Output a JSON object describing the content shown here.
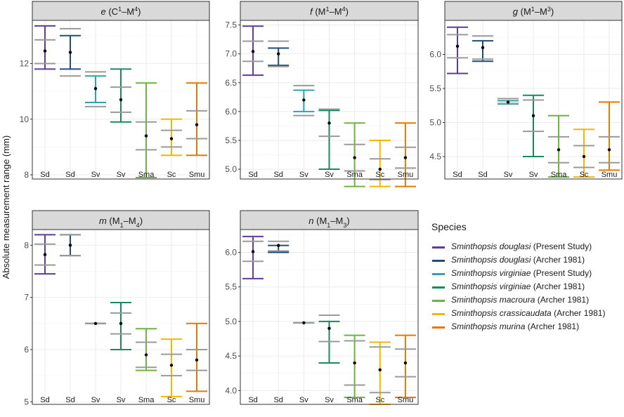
{
  "figure": {
    "y_axis_label": "Absolute measurement range (mm)",
    "legend_title": "Species"
  },
  "species": [
    {
      "code": "Sd",
      "genus": "Sminthopsis",
      "epithet": "douglasi",
      "source": "(Present Study)",
      "color": "#5E3C99"
    },
    {
      "code": "Sd",
      "genus": "Sminthopsis",
      "epithet": "douglasi",
      "source": "(Archer 1981)",
      "color": "#1F4E79"
    },
    {
      "code": "Sv",
      "genus": "Sminthopsis",
      "epithet": "virginiae",
      "source": "(Present Study)",
      "color": "#2FA4A8"
    },
    {
      "code": "Sv",
      "genus": "Sminthopsis",
      "epithet": "virginiae",
      "source": "(Archer 1981)",
      "color": "#178A5F"
    },
    {
      "code": "Sma",
      "genus": "Sminthopsis",
      "epithet": "macroura",
      "source": "(Archer 1981)",
      "color": "#6DB33F"
    },
    {
      "code": "Sc",
      "genus": "Sminthopsis",
      "epithet": "crassicaudata",
      "source": "(Archer 1981)",
      "color": "#F2B705"
    },
    {
      "code": "Smu",
      "genus": "Sminthopsis",
      "epithet": "murina",
      "source": "(Archer 1981)",
      "color": "#E07B00"
    }
  ],
  "chart_data": [
    {
      "type": "errorbar",
      "title_var": "e",
      "title_rest": " (C",
      "sup1": "1",
      "mid": "–M",
      "sup2": "4",
      "close": ")",
      "categories": [
        "Sd",
        "Sd",
        "Sv",
        "Sv",
        "Sma",
        "Sc",
        "Smu"
      ],
      "ylim": [
        7.85,
        13.55
      ],
      "yticks": [
        8,
        10,
        12
      ],
      "min": [
        11.8,
        11.8,
        10.6,
        9.9,
        7.9,
        8.7,
        8.7
      ],
      "max": [
        13.35,
        13.0,
        11.55,
        11.8,
        11.3,
        10.0,
        11.3
      ],
      "mean": [
        12.45,
        12.4,
        11.1,
        10.7,
        9.4,
        9.3,
        9.8
      ],
      "sd_low": [
        12.0,
        11.55,
        10.45,
        10.25,
        8.9,
        9.0,
        9.3
      ],
      "sd_high": [
        12.85,
        13.25,
        11.7,
        11.15,
        9.9,
        9.6,
        10.3
      ]
    },
    {
      "type": "errorbar",
      "title_var": "f",
      "title_rest": " (M",
      "sup1": "1",
      "mid": "–M",
      "sup2": "4",
      "close": ")",
      "categories": [
        "Sd",
        "Sd",
        "Sv",
        "Sv",
        "Sma",
        "Sc",
        "Smu"
      ],
      "ylim": [
        4.83,
        7.58
      ],
      "yticks": [
        5.0,
        5.5,
        6.0,
        6.5,
        7.0,
        7.5
      ],
      "tick_decimals": 1,
      "min": [
        6.63,
        6.8,
        6.0,
        5.0,
        4.7,
        4.7,
        4.7
      ],
      "max": [
        7.48,
        7.1,
        6.37,
        6.02,
        5.8,
        5.5,
        5.8
      ],
      "mean": [
        7.04,
        7.0,
        6.2,
        5.8,
        5.2,
        5.0,
        5.2
      ],
      "sd_low": [
        6.87,
        6.78,
        5.93,
        5.57,
        4.97,
        4.82,
        5.02
      ],
      "sd_high": [
        7.22,
        7.22,
        6.45,
        6.04,
        5.43,
        5.18,
        5.38
      ]
    },
    {
      "type": "errorbar",
      "title_var": "g",
      "title_rest": " (M",
      "sup1": "1",
      "mid": "–M",
      "sup2": "3",
      "close": ")",
      "categories": [
        "Sd",
        "Sd",
        "Sv",
        "Sv",
        "Sma",
        "Sc",
        "Smu"
      ],
      "ylim": [
        4.17,
        6.5
      ],
      "yticks": [
        4.5,
        5.0,
        5.5,
        6.0
      ],
      "tick_decimals": 1,
      "min": [
        5.72,
        5.9,
        5.27,
        4.5,
        4.2,
        4.2,
        4.3
      ],
      "max": [
        6.4,
        6.2,
        5.32,
        5.4,
        5.1,
        4.9,
        5.3
      ],
      "mean": [
        6.12,
        6.1,
        5.3,
        5.1,
        4.6,
        4.5,
        4.6
      ],
      "sd_low": [
        5.95,
        5.93,
        5.28,
        4.87,
        4.41,
        4.34,
        4.41
      ],
      "sd_high": [
        6.29,
        6.27,
        5.35,
        5.33,
        4.79,
        4.66,
        4.79
      ]
    },
    {
      "type": "errorbar",
      "title_var": "m",
      "title_rest": " (M",
      "sub1": "1",
      "mid": "–M",
      "sub2": "4",
      "close": ")",
      "categories": [
        "Sd",
        "Sd",
        "Sv",
        "Sv",
        "Sma",
        "Sc",
        "Smu"
      ],
      "ylim": [
        4.95,
        8.3
      ],
      "yticks": [
        5,
        6,
        7,
        8
      ],
      "min": [
        7.45,
        7.8,
        6.5,
        6.0,
        5.6,
        5.1,
        5.2
      ],
      "max": [
        8.2,
        8.2,
        6.5,
        6.9,
        6.4,
        6.2,
        6.5
      ],
      "mean": [
        7.82,
        8.0,
        6.5,
        6.5,
        5.9,
        5.7,
        5.8
      ],
      "sd_low": [
        7.62,
        7.8,
        6.5,
        6.3,
        5.66,
        5.5,
        5.6
      ],
      "sd_high": [
        8.02,
        8.2,
        6.5,
        6.7,
        6.14,
        5.91,
        6.0
      ]
    },
    {
      "type": "errorbar",
      "title_var": "n",
      "title_rest": " (M",
      "sub1": "1",
      "mid": "–M",
      "sub2": "3",
      "close": ")",
      "categories": [
        "Sd",
        "Sd",
        "Sv",
        "Sv",
        "Sma",
        "Sc",
        "Smu"
      ],
      "ylim": [
        3.8,
        6.33
      ],
      "yticks": [
        4.0,
        4.5,
        5.0,
        5.5,
        6.0
      ],
      "tick_decimals": 1,
      "min": [
        5.62,
        6.0,
        4.98,
        4.4,
        3.9,
        3.8,
        3.9
      ],
      "max": [
        6.23,
        6.1,
        4.98,
        5.0,
        4.8,
        4.7,
        4.8
      ],
      "mean": [
        6.01,
        6.1,
        4.98,
        4.9,
        4.4,
        4.3,
        4.4
      ],
      "sd_low": [
        5.87,
        6.02,
        4.98,
        4.71,
        4.08,
        3.97,
        4.2
      ],
      "sd_high": [
        6.16,
        6.16,
        4.98,
        5.09,
        4.72,
        4.63,
        4.6
      ]
    }
  ]
}
